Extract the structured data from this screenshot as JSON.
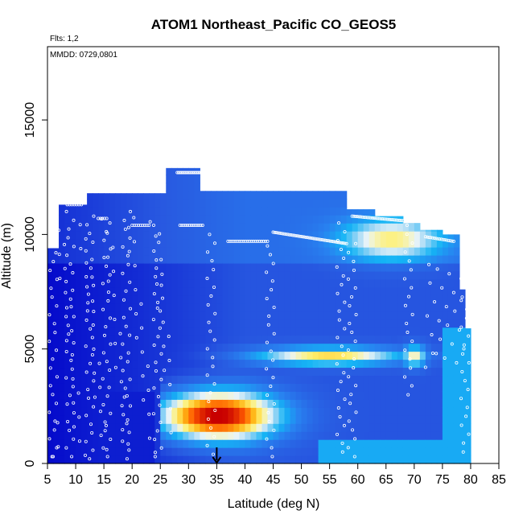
{
  "chart_data": {
    "type": "heatmap",
    "title": "ATOM1 Northeast_Pacific CO_GEOS5",
    "annotations": {
      "flights": "Flts: 1,2",
      "dates": "MMDD: 0729,0801"
    },
    "xlabel": "Latitude (deg N)",
    "ylabel": "Altitude (m)",
    "xlim": [
      5,
      85
    ],
    "ylim": [
      0,
      18200
    ],
    "x_ticks": [
      "5",
      "10",
      "15",
      "20",
      "25",
      "30",
      "35",
      "40",
      "45",
      "50",
      "55",
      "60",
      "65",
      "70",
      "75",
      "80",
      "85"
    ],
    "y_ticks": [
      "0",
      "5000",
      "10000",
      "15000"
    ],
    "arrow_marker_latitude": 35,
    "colors": {
      "low": "#0000c8",
      "mid_low": "#2f66e6",
      "mid": "#14b4f4",
      "pale": "#e8f4f8",
      "mid_high": "#ffee55",
      "high": "#ff6000",
      "very_high": "#cc0000"
    },
    "grid": false,
    "legend": "none"
  }
}
